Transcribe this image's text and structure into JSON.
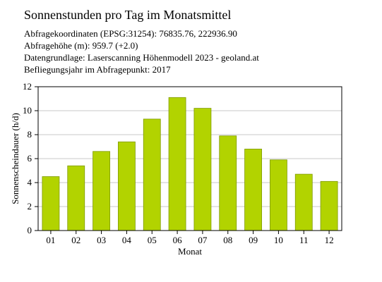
{
  "header": {
    "title": "Sonnenstunden pro Tag im Monatsmittel",
    "lines": [
      "Abfragekoordinaten (EPSG:31254): 76835.76, 222936.90",
      "Abfragehöhe (m): 959.7 (+2.0)",
      "Datengrundlage: Laserscanning Höhenmodell 2023 - geoland.at",
      "Befliegungsjahr im Abfragepunkt: 2017"
    ]
  },
  "chart_data": {
    "type": "bar",
    "categories": [
      "01",
      "02",
      "03",
      "04",
      "05",
      "06",
      "07",
      "08",
      "09",
      "10",
      "11",
      "12"
    ],
    "values": [
      4.5,
      5.4,
      6.6,
      7.4,
      9.3,
      11.1,
      10.2,
      7.9,
      6.8,
      5.9,
      4.7,
      4.1
    ],
    "xlabel": "Monat",
    "ylabel": "Sonnenscheindauer (h/d)",
    "ylim": [
      0,
      12
    ],
    "yticks": [
      0,
      2,
      4,
      6,
      8,
      10,
      12
    ],
    "grid": true,
    "bar_color": "#b2d300",
    "bar_edge_color": "#7f9a00"
  }
}
